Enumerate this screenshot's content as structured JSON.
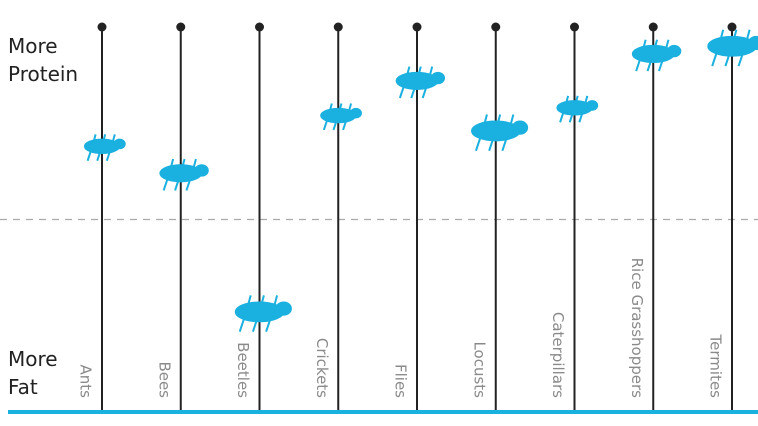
{
  "chart_data": {
    "type": "dot",
    "top_label": "More Protein",
    "bottom_label": "More Fat",
    "categories": [
      "Ants",
      "Bees",
      "Beetles",
      "Crickets",
      "Flies",
      "Locusts",
      "Caterpillars",
      "Rice Grasshoppers",
      "Termites"
    ],
    "values": [
      69,
      62,
      26,
      77,
      86,
      73,
      79,
      93,
      95
    ],
    "color": "#1ab0e0",
    "ylim": [
      0,
      100
    ]
  }
}
